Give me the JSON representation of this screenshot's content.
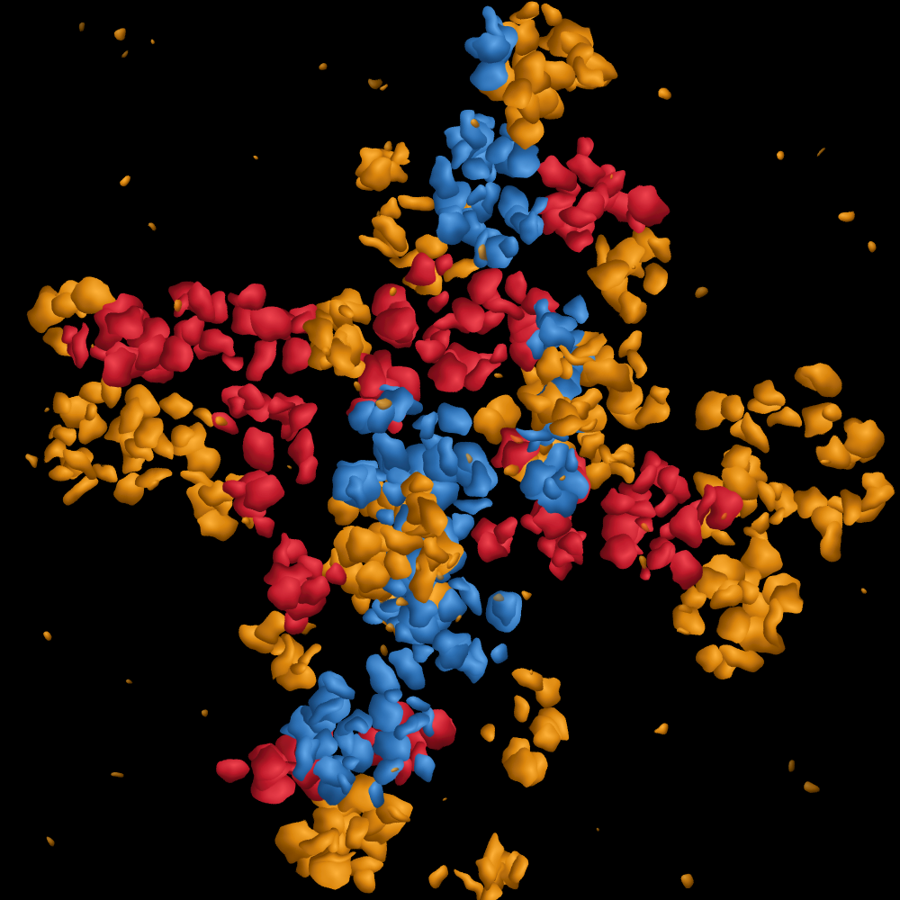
{
  "image": {
    "subject": "molecular-surface-density-map",
    "background_color": "#000000",
    "palette": {
      "orange": "#d9840b",
      "red": "#c01b2b",
      "blue": "#2f73b8"
    }
  }
}
